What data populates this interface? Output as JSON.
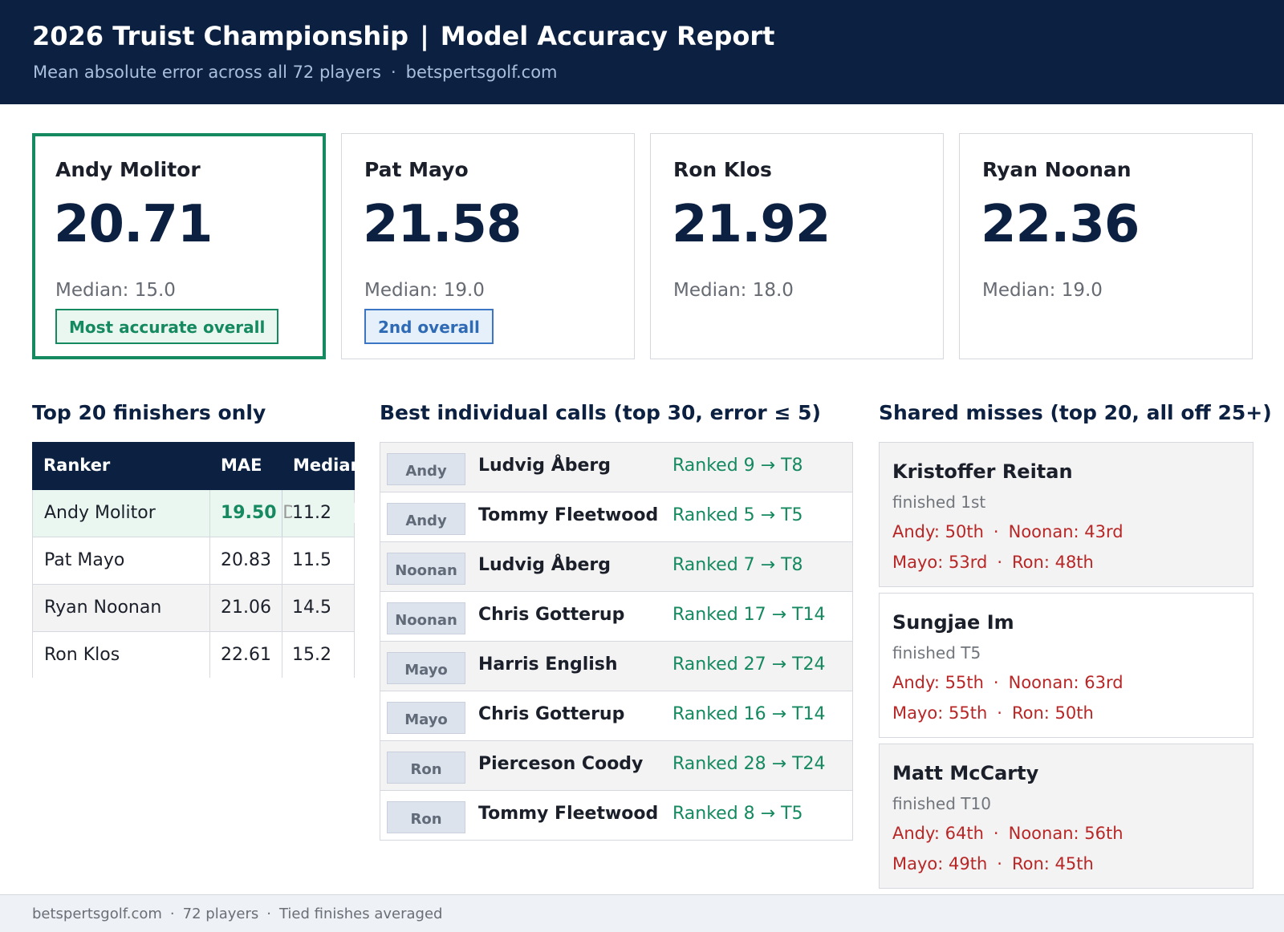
{
  "header": {
    "title_event": "2026 Truist Championship",
    "title_sep": "|",
    "title_report": "Model Accuracy Report",
    "subtitle_main": "Mean absolute error across all 72 players",
    "subtitle_sep": "·",
    "subtitle_site": "betspertsgolf.com"
  },
  "cards": [
    {
      "name": "Andy Molitor",
      "score": "20.71",
      "median": "Median: 15.0",
      "badge": "Most accurate overall"
    },
    {
      "name": "Pat Mayo",
      "score": "21.58",
      "median": "Median: 19.0",
      "badge": "2nd overall"
    },
    {
      "name": "Ron Klos",
      "score": "21.92",
      "median": "Median: 18.0"
    },
    {
      "name": "Ryan Noonan",
      "score": "22.36",
      "median": "Median: 19.0"
    }
  ],
  "top20": {
    "title": "Top 20 finishers only",
    "headers": [
      "Ranker",
      "MAE",
      "Median"
    ],
    "rows": [
      {
        "ranker": "Andy Molitor",
        "mae": "19.50",
        "mae_extra": "D",
        "median": "11.2"
      },
      {
        "ranker": "Pat Mayo",
        "mae": "20.83",
        "median": "11.5"
      },
      {
        "ranker": "Ryan Noonan",
        "mae": "21.06",
        "median": "14.5"
      },
      {
        "ranker": "Ron Klos",
        "mae": "22.61",
        "median": "15.2"
      }
    ]
  },
  "calls": {
    "title": "Best individual calls  (top 30, error ≤ 5)",
    "rows": [
      {
        "tag": "Andy",
        "player": "Ludvig Åberg",
        "rank": "Ranked  9 → T8"
      },
      {
        "tag": "Andy",
        "player": "Tommy Fleetwood",
        "rank": "Ranked  5 → T5"
      },
      {
        "tag": "Noonan",
        "player": "Ludvig Åberg",
        "rank": "Ranked  7 → T8"
      },
      {
        "tag": "Noonan",
        "player": "Chris Gotterup",
        "rank": "Ranked 17 → T14"
      },
      {
        "tag": "Mayo",
        "player": "Harris English",
        "rank": "Ranked  27 → T24"
      },
      {
        "tag": "Mayo",
        "player": "Chris Gotterup",
        "rank": "Ranked 16 → T14"
      },
      {
        "tag": "Ron",
        "player": "Pierceson Coody",
        "rank": "Ranked  28 → T24"
      },
      {
        "tag": "Ron",
        "player": "Tommy Fleetwood",
        "rank": "Ranked  8 → T5"
      }
    ]
  },
  "misses": {
    "title": "Shared misses  (top 20, all off 25+)",
    "sep": "·",
    "items": [
      {
        "name": "Kristoffer Reitan",
        "finish": "finished 1st",
        "andy": "Andy: 50th",
        "noonan": "Noonan: 43rd",
        "mayo": "Mayo: 53rd",
        "ron": "Ron: 48th"
      },
      {
        "name": "Sungjae Im",
        "finish": "finished T5",
        "andy": "Andy: 55th",
        "noonan": "Noonan: 63rd",
        "mayo": "Mayo: 55th",
        "ron": "Ron: 50th"
      },
      {
        "name": "Matt McCarty",
        "finish": "finished T10",
        "andy": "Andy: 64th",
        "noonan": "Noonan: 56th",
        "mayo": "Mayo: 49th",
        "ron": "Ron: 45th"
      }
    ]
  },
  "footer": {
    "site": "betspertsgolf.com",
    "sep": "·",
    "players": "72 players",
    "note": "Tied finishes averaged"
  },
  "colors": {
    "navy": "#0c2141",
    "green": "#15895f",
    "blue": "#2f6bb5",
    "miss_red": "#b82626"
  }
}
